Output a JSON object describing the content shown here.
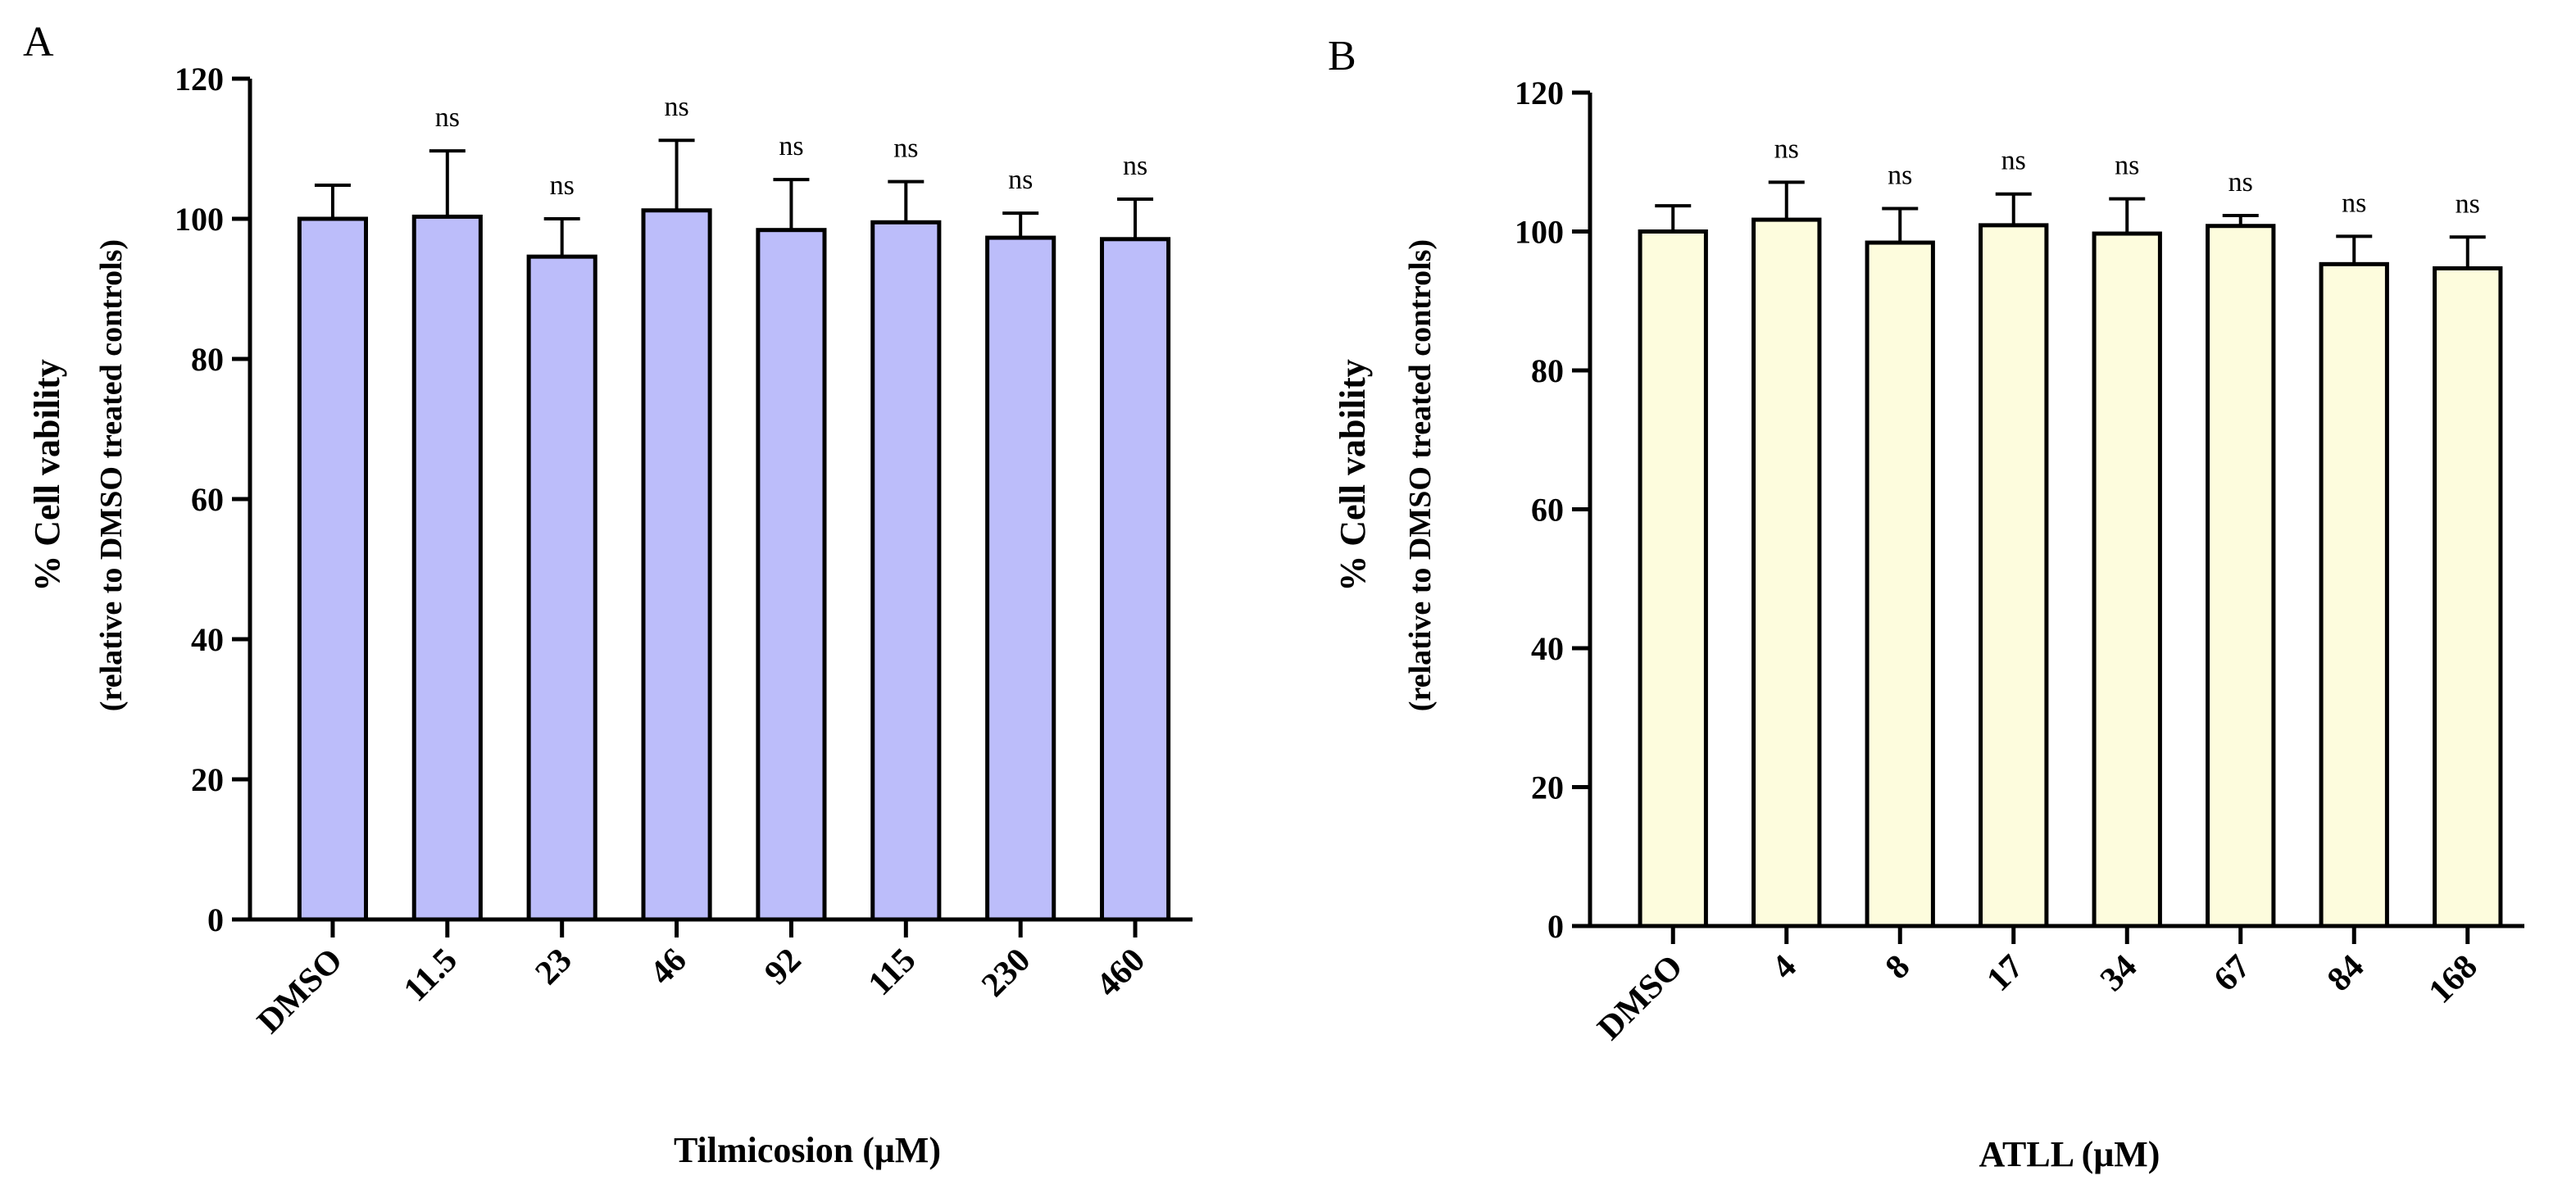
{
  "chart_data": [
    {
      "type": "bar",
      "panel": "A",
      "title": "",
      "xlabel": "Tilmicosion (μM)",
      "ylabel": "% Cell vability",
      "ylabel_sub": "(relative to DMSO treated controls)",
      "categories": [
        "DMSO",
        "11.5",
        "23",
        "46",
        "92",
        "115",
        "230",
        "460"
      ],
      "values": [
        100,
        100.3,
        94.6,
        101.2,
        98.4,
        99.5,
        97.3,
        97.1
      ],
      "error": [
        4.8,
        9.4,
        5.4,
        10.0,
        7.2,
        5.8,
        3.5,
        5.7
      ],
      "annotations": [
        "",
        "ns",
        "ns",
        "ns",
        "ns",
        "ns",
        "ns",
        "ns"
      ],
      "ylim": [
        0,
        120
      ],
      "yticks": [
        0,
        20,
        40,
        60,
        80,
        100,
        120
      ],
      "bar_color": "#bcbdfa",
      "grid": false
    },
    {
      "type": "bar",
      "panel": "B",
      "title": "",
      "xlabel": "ATLL (μM)",
      "ylabel": "% Cell vability",
      "ylabel_sub": "(relative to DMSO treated controls)",
      "categories": [
        "DMSO",
        "4",
        "8",
        "17",
        "34",
        "67",
        "84",
        "168"
      ],
      "values": [
        100,
        101.7,
        98.4,
        100.9,
        99.7,
        100.8,
        95.3,
        94.7
      ],
      "error": [
        3.7,
        5.4,
        4.9,
        4.5,
        5.0,
        1.5,
        4.0,
        4.5
      ],
      "annotations": [
        "",
        "ns",
        "ns",
        "ns",
        "ns",
        "ns",
        "ns",
        "ns"
      ],
      "ylim": [
        0,
        120
      ],
      "yticks": [
        0,
        20,
        40,
        60,
        80,
        100,
        120
      ],
      "bar_color": "#fdfcdd",
      "grid": false
    }
  ]
}
